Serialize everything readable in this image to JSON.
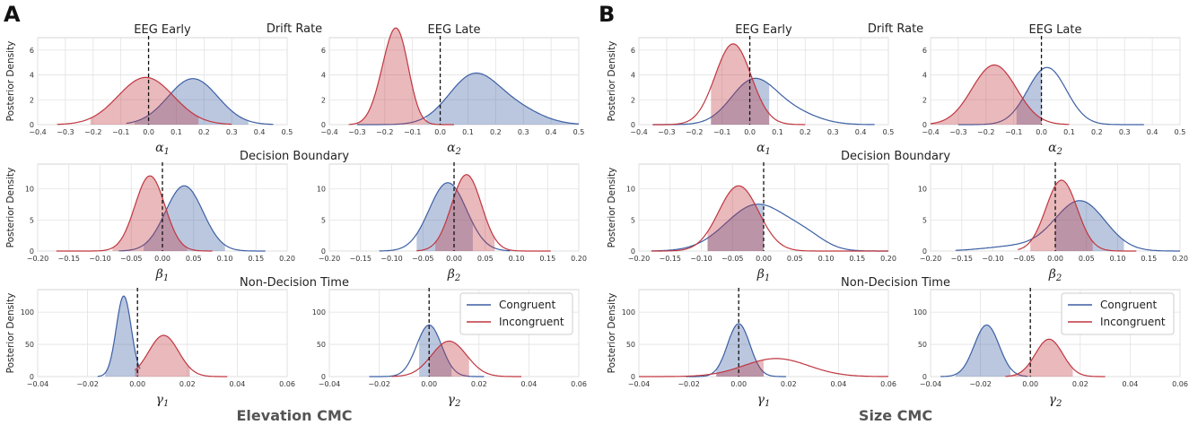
{
  "colors": {
    "congruent": "#3b5fa4",
    "incongruent": "#c0363f",
    "grid": "#e2e2e2",
    "spine": "#cccccc"
  },
  "panel_labels": [
    "A",
    "B"
  ],
  "panel_titles": [
    "Elevation CMC",
    "Size CMC"
  ],
  "section_titles": [
    "Drift Rate",
    "Decision Boundary",
    "Non-Decision Time"
  ],
  "subplot_titles": [
    "EEG Early",
    "EEG Late"
  ],
  "y_label": "Posterior Density",
  "legend": [
    "Congruent",
    "Incongruent"
  ],
  "chart_data": [
    {
      "id": "A-alpha1",
      "type": "area",
      "panel": "A",
      "row": 0,
      "col": 0,
      "title": "EEG Early",
      "xlabel": "α",
      "xsub": "1",
      "xlim": [
        -0.4,
        0.5
      ],
      "ylim": [
        0,
        7
      ],
      "xticks": [
        -0.4,
        -0.3,
        -0.2,
        -0.1,
        0.0,
        0.1,
        0.2,
        0.3,
        0.4,
        0.5
      ],
      "yticks": [
        0,
        2,
        4,
        6
      ],
      "xtick_dec": 1,
      "ref_line": 0,
      "series": [
        {
          "name": "Congruent",
          "components": [
            [
              3.7,
              0.16,
              0.09
            ]
          ],
          "range": [
            -0.08,
            0.45
          ],
          "hdi": [
            -0.05,
            0.36
          ]
        },
        {
          "name": "Incongruent",
          "components": [
            [
              3.8,
              -0.01,
              0.1
            ]
          ],
          "range": [
            -0.33,
            0.3
          ],
          "hdi": [
            -0.21,
            0.18
          ]
        }
      ]
    },
    {
      "id": "A-alpha2",
      "type": "area",
      "panel": "A",
      "row": 0,
      "col": 1,
      "title": "EEG Late",
      "xlabel": "α",
      "xsub": "2",
      "xlim": [
        -0.4,
        0.5
      ],
      "ylim": [
        0,
        7
      ],
      "xticks": [
        -0.4,
        -0.3,
        -0.2,
        -0.1,
        0.0,
        0.1,
        0.2,
        0.3,
        0.4,
        0.5
      ],
      "yticks": [
        0,
        2,
        4,
        6
      ],
      "xtick_dec": 1,
      "ref_line": 0,
      "series": [
        {
          "name": "Congruent",
          "components": [
            [
              3.9,
              0.12,
              0.09
            ],
            [
              1.1,
              0.28,
              0.09
            ]
          ],
          "range": [
            -0.3,
            0.5
          ],
          "hdi": [
            -0.05,
            0.5
          ]
        },
        {
          "name": "Incongruent",
          "components": [
            [
              6.4,
              -0.15,
              0.04
            ],
            [
              2.6,
              -0.2,
              0.04
            ]
          ],
          "range": [
            -0.33,
            0.05
          ],
          "hdi": [
            -0.3,
            -0.05
          ]
        }
      ]
    },
    {
      "id": "A-beta1",
      "type": "area",
      "panel": "A",
      "row": 1,
      "col": 0,
      "xlabel": "β",
      "xsub": "1",
      "xlim": [
        -0.2,
        0.2
      ],
      "ylim": [
        0,
        14
      ],
      "xticks": [
        -0.2,
        -0.15,
        -0.1,
        -0.05,
        0,
        0.05,
        0.1,
        0.15,
        0.2
      ],
      "yticks": [
        0,
        5,
        10
      ],
      "xtick_dec": 2,
      "ref_line": 0,
      "series": [
        {
          "name": "Congruent",
          "components": [
            [
              10.5,
              0.035,
              0.03
            ]
          ],
          "range": [
            -0.07,
            0.165
          ],
          "hdi": [
            -0.03,
            0.1
          ]
        },
        {
          "name": "Incongruent",
          "components": [
            [
              12.1,
              -0.02,
              0.024
            ]
          ],
          "range": [
            -0.17,
            0.08
          ],
          "hdi": [
            -0.08,
            0.04
          ]
        }
      ]
    },
    {
      "id": "A-beta2",
      "type": "area",
      "panel": "A",
      "row": 1,
      "col": 1,
      "xlabel": "β",
      "xsub": "2",
      "xlim": [
        -0.2,
        0.2
      ],
      "ylim": [
        0,
        14
      ],
      "xticks": [
        -0.2,
        -0.15,
        -0.1,
        -0.05,
        0,
        0.05,
        0.1,
        0.15,
        0.2
      ],
      "yticks": [
        0,
        5,
        10
      ],
      "xtick_dec": 2,
      "ref_line": 0,
      "series": [
        {
          "name": "Congruent",
          "components": [
            [
              11,
              -0.01,
              0.03
            ]
          ],
          "range": [
            -0.12,
            0.09
          ],
          "hdi": [
            -0.06,
            0.03
          ]
        },
        {
          "name": "Incongruent",
          "components": [
            [
              12.3,
              0.02,
              0.024
            ]
          ],
          "range": [
            -0.06,
            0.155
          ],
          "hdi": [
            -0.03,
            0.065
          ]
        }
      ]
    },
    {
      "id": "A-gamma1",
      "type": "area",
      "panel": "A",
      "row": 2,
      "col": 0,
      "xlabel": "γ",
      "xsub": "1",
      "xlim": [
        -0.04,
        0.06
      ],
      "ylim": [
        0,
        135
      ],
      "xticks": [
        -0.04,
        -0.02,
        0,
        0.02,
        0.04,
        0.06
      ],
      "yticks": [
        0,
        50,
        100
      ],
      "xtick_dec": 2,
      "ref_line": 0,
      "series": [
        {
          "name": "Congruent",
          "components": [
            [
              125,
              -0.0055,
              0.003
            ]
          ],
          "range": [
            -0.016,
            0.001
          ],
          "hdi": [
            -0.013,
            0.0005
          ]
        },
        {
          "name": "Incongruent",
          "components": [
            [
              64,
              0.0105,
              0.006
            ]
          ],
          "range": [
            -0.001,
            0.036
          ],
          "hdi": [
            -0.001,
            0.021
          ]
        }
      ]
    },
    {
      "id": "A-gamma2",
      "type": "area",
      "panel": "A",
      "row": 2,
      "col": 1,
      "xlabel": "γ",
      "xsub": "2",
      "xlim": [
        -0.04,
        0.06
      ],
      "ylim": [
        0,
        135
      ],
      "xticks": [
        -0.04,
        -0.02,
        0,
        0.02,
        0.04,
        0.06
      ],
      "yticks": [
        0,
        50,
        100
      ],
      "xtick_dec": 2,
      "ref_line": 0,
      "series": [
        {
          "name": "Congruent",
          "components": [
            [
              80,
              0,
              0.005
            ]
          ],
          "range": [
            -0.024,
            0.022
          ],
          "hdi": [
            -0.004,
            0.009
          ]
        },
        {
          "name": "Incongruent",
          "components": [
            [
              55,
              0.008,
              0.007
            ]
          ],
          "range": [
            -0.015,
            0.037
          ],
          "hdi": [
            0,
            0.016
          ]
        }
      ]
    },
    {
      "id": "B-alpha1",
      "type": "area",
      "panel": "B",
      "row": 0,
      "col": 0,
      "title": "EEG Early",
      "xlabel": "α",
      "xsub": "1",
      "xlim": [
        -0.4,
        0.5
      ],
      "ylim": [
        0,
        7
      ],
      "xticks": [
        -0.4,
        -0.3,
        -0.2,
        -0.1,
        0.0,
        0.1,
        0.2,
        0.3,
        0.4,
        0.5
      ],
      "yticks": [
        0,
        2,
        4,
        6
      ],
      "xtick_dec": 1,
      "ref_line": 0,
      "series": [
        {
          "name": "Congruent",
          "components": [
            [
              3.4,
              0.01,
              0.08
            ],
            [
              1.0,
              0.15,
              0.09
            ]
          ],
          "range": [
            -0.35,
            0.45
          ],
          "hdi": [
            -0.14,
            0.07
          ]
        },
        {
          "name": "Incongruent",
          "components": [
            [
              6.5,
              -0.06,
              0.065
            ]
          ],
          "range": [
            -0.35,
            0.2
          ],
          "hdi": [
            -0.14,
            0.07
          ]
        }
      ]
    },
    {
      "id": "B-alpha2",
      "type": "area",
      "panel": "B",
      "row": 0,
      "col": 1,
      "title": "EEG Late",
      "xlabel": "α",
      "xsub": "2",
      "xlim": [
        -0.4,
        0.5
      ],
      "ylim": [
        0,
        7
      ],
      "xticks": [
        -0.4,
        -0.3,
        -0.2,
        -0.1,
        0.0,
        0.1,
        0.2,
        0.3,
        0.4,
        0.5
      ],
      "yticks": [
        0,
        2,
        4,
        6
      ],
      "xtick_dec": 1,
      "ref_line": 0,
      "series": [
        {
          "name": "Congruent",
          "components": [
            [
              4.6,
              0.02,
              0.07
            ]
          ],
          "range": [
            -0.3,
            0.37
          ],
          "hdi": [
            -0.09,
            0.0
          ]
        },
        {
          "name": "Incongruent",
          "components": [
            [
              4.8,
              -0.17,
              0.08
            ]
          ],
          "range": [
            -0.4,
            0.1
          ],
          "hdi": [
            -0.4,
            0.0
          ]
        }
      ]
    },
    {
      "id": "B-beta1",
      "type": "area",
      "panel": "B",
      "row": 1,
      "col": 0,
      "xlabel": "β",
      "xsub": "1",
      "xlim": [
        -0.2,
        0.2
      ],
      "ylim": [
        0,
        14
      ],
      "xticks": [
        -0.2,
        -0.15,
        -0.1,
        -0.05,
        0,
        0.05,
        0.1,
        0.15,
        0.2
      ],
      "yticks": [
        0,
        5,
        10
      ],
      "xtick_dec": 2,
      "ref_line": 0,
      "series": [
        {
          "name": "Congruent",
          "components": [
            [
              7.5,
              -0.01,
              0.05
            ],
            [
              1.5,
              0.07,
              0.03
            ]
          ],
          "range": [
            -0.18,
            0.2
          ],
          "hdi": [
            -0.09,
            0.0
          ]
        },
        {
          "name": "Incongruent",
          "components": [
            [
              10.5,
              -0.04,
              0.032
            ]
          ],
          "range": [
            -0.18,
            0.2
          ],
          "hdi": [
            -0.09,
            0.0
          ]
        }
      ]
    },
    {
      "id": "B-beta2",
      "type": "area",
      "panel": "B",
      "row": 1,
      "col": 1,
      "xlabel": "β",
      "xsub": "2",
      "xlim": [
        -0.2,
        0.2
      ],
      "ylim": [
        0,
        14
      ],
      "xticks": [
        -0.2,
        -0.15,
        -0.1,
        -0.05,
        0,
        0.05,
        0.1,
        0.15,
        0.2
      ],
      "yticks": [
        0,
        5,
        10
      ],
      "xtick_dec": 2,
      "ref_line": 0,
      "series": [
        {
          "name": "Congruent",
          "components": [
            [
              8,
              0.04,
              0.04
            ],
            [
              0.8,
              -0.06,
              0.05
            ]
          ],
          "range": [
            -0.16,
            0.2
          ],
          "hdi": [
            0.0,
            0.11
          ]
        },
        {
          "name": "Incongruent",
          "components": [
            [
              11.4,
              0.01,
              0.025
            ]
          ],
          "range": [
            -0.06,
            0.13
          ],
          "hdi": [
            -0.04,
            0.06
          ]
        }
      ]
    },
    {
      "id": "B-gamma1",
      "type": "area",
      "panel": "B",
      "row": 2,
      "col": 0,
      "xlabel": "γ",
      "xsub": "1",
      "xlim": [
        -0.04,
        0.06
      ],
      "ylim": [
        0,
        135
      ],
      "xticks": [
        -0.04,
        -0.02,
        0,
        0.02,
        0.04,
        0.06
      ],
      "yticks": [
        0,
        50,
        100
      ],
      "xtick_dec": 2,
      "ref_line": 0,
      "series": [
        {
          "name": "Congruent",
          "components": [
            [
              82,
              0,
              0.0045
            ]
          ],
          "range": [
            -0.021,
            0.019
          ],
          "hdi": [
            -0.009,
            0.01
          ]
        },
        {
          "name": "Incongruent",
          "components": [
            [
              28,
              0.015,
              0.013
            ]
          ],
          "range": [
            -0.04,
            0.06
          ],
          "hdi": [
            -0.009,
            0.01
          ]
        }
      ]
    },
    {
      "id": "B-gamma2",
      "type": "area",
      "panel": "B",
      "row": 2,
      "col": 1,
      "xlabel": "γ",
      "xsub": "2",
      "xlim": [
        -0.04,
        0.06
      ],
      "ylim": [
        0,
        135
      ],
      "xticks": [
        -0.04,
        -0.02,
        0,
        0.02,
        0.04,
        0.06
      ],
      "yticks": [
        0,
        50,
        100
      ],
      "xtick_dec": 2,
      "ref_line": 0,
      "series": [
        {
          "name": "Congruent",
          "components": [
            [
              80,
              -0.0175,
              0.005
            ]
          ],
          "range": [
            -0.036,
            -0.001
          ],
          "hdi": [
            -0.03,
            -0.008
          ]
        },
        {
          "name": "Incongruent",
          "components": [
            [
              58,
              0.0075,
              0.0055
            ]
          ],
          "range": [
            -0.01,
            0.03
          ],
          "hdi": [
            -0.008,
            0.017
          ]
        }
      ]
    }
  ]
}
